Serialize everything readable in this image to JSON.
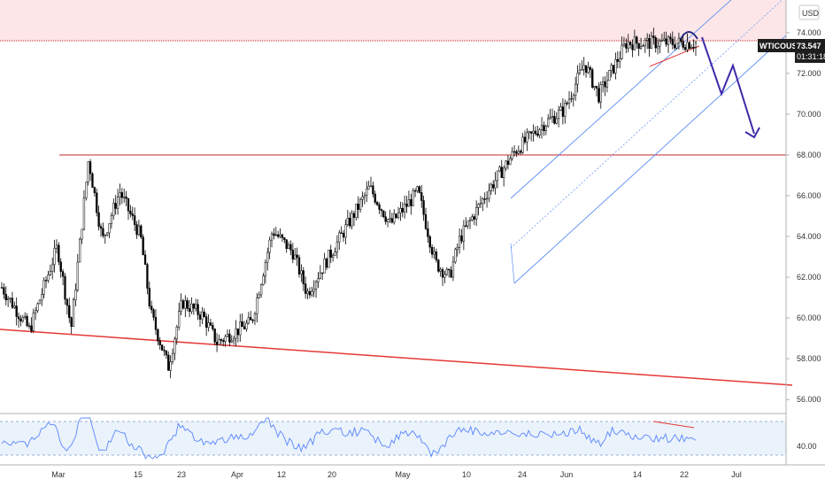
{
  "chart_data": {
    "type": "candlestick",
    "symbol": "WTICOUSD",
    "currency": "USD",
    "last_price": 73.547,
    "countdown": "01:31:18",
    "y_ticks": [
      "74.000",
      "72.000",
      "70.000",
      "68.000",
      "66.000",
      "64.000",
      "62.000",
      "60.000",
      "58.000",
      "56.000"
    ],
    "y_range": [
      55.4,
      75.6
    ],
    "x_ticks": [
      "Mar",
      "15",
      "23",
      "Apr",
      "12",
      "20",
      "May",
      "10",
      "24",
      "Jun",
      "14",
      "22",
      "Jul"
    ],
    "rsi_tick": "40.00",
    "resistance_level": 73.6,
    "support_level": 68.0,
    "price_path": [
      [
        0,
        61.5
      ],
      [
        0.04,
        59.4
      ],
      [
        0.08,
        63.5
      ],
      [
        0.1,
        59.5
      ],
      [
        0.125,
        67.8
      ],
      [
        0.145,
        63.8
      ],
      [
        0.17,
        66.2
      ],
      [
        0.2,
        64.0
      ],
      [
        0.215,
        60.2
      ],
      [
        0.24,
        57.6
      ],
      [
        0.26,
        60.8
      ],
      [
        0.29,
        60.1
      ],
      [
        0.31,
        58.8
      ],
      [
        0.36,
        59.8
      ],
      [
        0.39,
        64.3
      ],
      [
        0.42,
        63.2
      ],
      [
        0.44,
        61.2
      ],
      [
        0.48,
        63.5
      ],
      [
        0.53,
        66.4
      ],
      [
        0.56,
        64.6
      ],
      [
        0.6,
        66.2
      ],
      [
        0.625,
        62.7
      ],
      [
        0.645,
        62.0
      ],
      [
        0.66,
        63.9
      ],
      [
        0.7,
        66.2
      ],
      [
        0.74,
        68.2
      ],
      [
        0.78,
        69.5
      ],
      [
        0.81,
        70.2
      ],
      [
        0.84,
        72.5
      ],
      [
        0.86,
        70.9
      ],
      [
        0.9,
        73.5
      ]
    ]
  }
}
